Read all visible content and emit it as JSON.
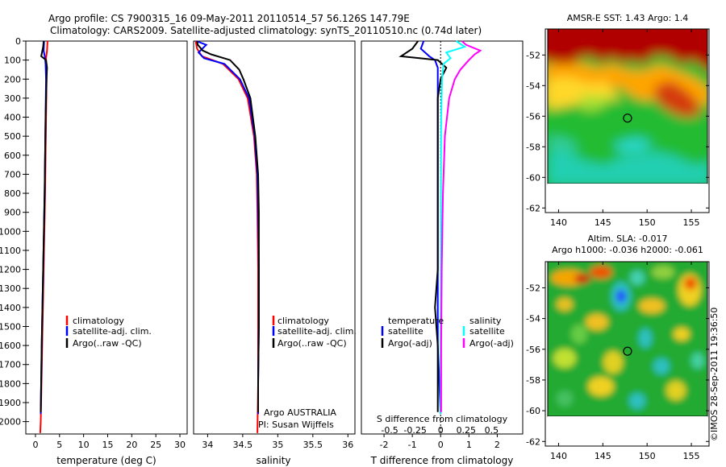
{
  "header": {
    "line1": "Argo profile: CS 7900315_16 09-May-2011 20110514_57 56.126S 147.79E",
    "line2": "Climatology: CARS2009. Satellite-adjusted climatology: synTS_20110510.nc (0.74d later)"
  },
  "timestamp": "©IMOS 28-Sep-2011 19:36:50",
  "chart_data": [
    {
      "type": "line",
      "name": "temperature-profile",
      "xlabel": "temperature (deg C)",
      "xticks": [
        0,
        5,
        10,
        15,
        20,
        25,
        30
      ],
      "xlim": [
        -2,
        31.5
      ],
      "yticks": [
        0,
        100,
        200,
        300,
        400,
        500,
        600,
        700,
        800,
        900,
        1000,
        1100,
        1200,
        1300,
        1400,
        1500,
        1600,
        1700,
        1800,
        1900,
        2000
      ],
      "ylim": [
        2065,
        0
      ],
      "legend": [
        "climatology",
        "satellite-adj. clim.",
        "Argo(..raw -QC)"
      ],
      "series": [
        {
          "name": "climatology",
          "color": "#ff0000",
          "depth": [
            0,
            50,
            90,
            120,
            200,
            400,
            800,
            1200,
            1600,
            2000,
            2060
          ],
          "values": [
            2.5,
            2.4,
            2.2,
            2.2,
            2.3,
            2.2,
            2.0,
            1.7,
            1.4,
            1.1,
            1.0
          ]
        },
        {
          "name": "satellite-adj. clim.",
          "color": "#0000ff",
          "depth": [
            0,
            50,
            90,
            120,
            200,
            400,
            800,
            1200,
            1600,
            1960
          ],
          "values": [
            1.8,
            1.7,
            2.0,
            2.1,
            2.2,
            2.1,
            1.9,
            1.6,
            1.3,
            1.1
          ]
        },
        {
          "name": "Argo(..raw -QC)",
          "color": "#000000",
          "depth": [
            0,
            30,
            80,
            100,
            140,
            200,
            400,
            800,
            1200,
            1600,
            1950
          ],
          "values": [
            1.7,
            1.6,
            1.2,
            2.2,
            2.4,
            2.3,
            2.1,
            1.9,
            1.6,
            1.3,
            1.1
          ]
        }
      ]
    },
    {
      "type": "line",
      "name": "salinity-profile",
      "xlabel": "salinity",
      "xticks": [
        34,
        34.5,
        35,
        35.5,
        36
      ],
      "xlim": [
        33.8,
        36.1
      ],
      "ylim": [
        2065,
        0
      ],
      "legend": [
        "climatology",
        "satellite-adj. clim.",
        "Argo(..raw -QC)"
      ],
      "annotation": [
        "Argo AUSTRALIA",
        "PI: Susan Wijffels"
      ],
      "series": [
        {
          "name": "climatology",
          "color": "#ff0000",
          "depth": [
            0,
            40,
            80,
            120,
            200,
            300,
            500,
            700,
            900,
            1200,
            1500,
            1800,
            2060
          ],
          "values": [
            33.83,
            33.85,
            33.92,
            34.22,
            34.44,
            34.57,
            34.66,
            34.7,
            34.71,
            34.72,
            34.72,
            34.72,
            34.71
          ]
        },
        {
          "name": "satellite-adj. clim.",
          "color": "#0000ff",
          "depth": [
            0,
            20,
            60,
            90,
            120,
            200,
            300,
            500,
            700,
            900,
            1200,
            1500,
            1800,
            1960
          ],
          "values": [
            33.84,
            33.98,
            33.87,
            33.95,
            34.24,
            34.46,
            34.59,
            34.67,
            34.71,
            34.72,
            34.73,
            34.73,
            34.72,
            34.72
          ]
        },
        {
          "name": "Argo(..raw -QC)",
          "color": "#000000",
          "depth": [
            0,
            20,
            50,
            70,
            100,
            150,
            200,
            300,
            500,
            700,
            900,
            1200,
            1500,
            1800,
            1950
          ],
          "values": [
            33.85,
            33.86,
            33.93,
            34.05,
            34.32,
            34.45,
            34.51,
            34.61,
            34.68,
            34.72,
            34.73,
            34.73,
            34.73,
            34.72,
            34.72
          ]
        }
      ]
    },
    {
      "type": "line",
      "name": "difference-profile",
      "xlabel": "T difference from climatology",
      "xlabel_top": "S difference from climatology",
      "xticks": [
        -2,
        -1,
        0,
        1,
        2
      ],
      "xticks_top": [
        "-0.5",
        "-0.25",
        "0",
        "0.25",
        "0.5"
      ],
      "xlim": [
        -2.8,
        2.9
      ],
      "ylim": [
        2065,
        0
      ],
      "legend_temperature": {
        "heading": "temperature",
        "items": [
          "satellite",
          "Argo(-adj)"
        ]
      },
      "legend_salinity": {
        "heading": "salinity",
        "items": [
          "satellite",
          "Argo(-adj)"
        ]
      },
      "series": [
        {
          "name": "temperature satellite",
          "color": "#0000ff",
          "depth": [
            0,
            40,
            80,
            100,
            140,
            200,
            400,
            800,
            1200,
            1600,
            1960
          ],
          "values": [
            -0.6,
            -0.7,
            -0.4,
            -0.2,
            -0.1,
            -0.1,
            -0.1,
            -0.1,
            -0.1,
            -0.1,
            0.0
          ]
        },
        {
          "name": "temperature Argo(-adj)",
          "color": "#000000",
          "depth": [
            0,
            40,
            80,
            100,
            140,
            200,
            300,
            500,
            800,
            1200,
            1400,
            1600,
            1800,
            1950
          ],
          "values": [
            -0.8,
            -1.0,
            -1.4,
            -0.1,
            0.2,
            0.0,
            -0.1,
            -0.1,
            -0.1,
            -0.1,
            -0.2,
            -0.1,
            -0.1,
            -0.1
          ]
        },
        {
          "name": "salinity satellite",
          "color": "#00ffff",
          "depth": [
            0,
            30,
            60,
            90,
            120,
            200,
            400,
            800,
            1200,
            1600,
            1960
          ],
          "values": [
            0.55,
            0.85,
            0.2,
            0.35,
            0.1,
            0.05,
            0.02,
            0.01,
            0.01,
            0.0,
            0.0
          ]
        },
        {
          "name": "salinity Argo(-adj)",
          "color": "#ff00ff",
          "depth": [
            0,
            20,
            50,
            70,
            100,
            150,
            200,
            300,
            500,
            800,
            1200,
            1600,
            1950
          ],
          "values": [
            0.75,
            0.9,
            1.4,
            1.2,
            1.0,
            0.7,
            0.5,
            0.3,
            0.15,
            0.08,
            0.04,
            0.02,
            0.02
          ]
        }
      ]
    },
    {
      "type": "heatmap",
      "name": "sst-map",
      "title": "AMSR-E SST: 1.43 Argo: 1.4",
      "xticks": [
        140,
        145,
        150,
        155
      ],
      "xlim": [
        138.5,
        157
      ],
      "yticks": [
        -52,
        -54,
        -56,
        -58,
        -60,
        -62
      ],
      "ylim": [
        -62.3,
        -50.3
      ],
      "data_bottom": -60,
      "marker": {
        "lon": 147.79,
        "lat": -56.126
      }
    },
    {
      "type": "heatmap",
      "name": "sla-map",
      "title_line1": "Altim. SLA: -0.017",
      "title_line2": "Argo h1000: -0.036 h2000: -0.061",
      "xticks": [
        140,
        145,
        150,
        155
      ],
      "xlim": [
        138.5,
        157
      ],
      "yticks": [
        -52,
        -54,
        -56,
        -58,
        -60,
        -62
      ],
      "ylim": [
        -62.3,
        -50.3
      ],
      "data_bottom": -60,
      "marker": {
        "lon": 147.79,
        "lat": -56.126
      }
    }
  ]
}
